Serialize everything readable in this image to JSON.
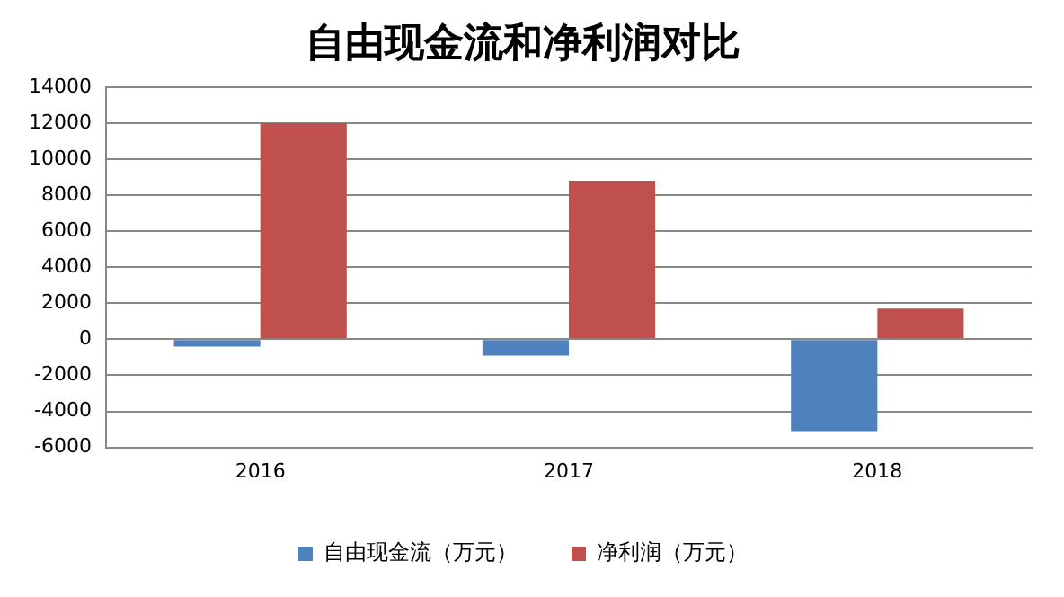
{
  "chart_data": {
    "type": "bar",
    "title": "自由现金流和净利润对比",
    "categories": [
      "2016",
      "2017",
      "2018"
    ],
    "series": [
      {
        "name": "自由现金流（万元）",
        "color": "#4f81bd",
        "values": [
          -400,
          -900,
          -5100
        ]
      },
      {
        "name": "净利润（万元）",
        "color": "#c0504d",
        "values": [
          12000,
          8800,
          1700
        ]
      }
    ],
    "ylim": [
      -6000,
      14000
    ],
    "yticks": [
      -6000,
      -4000,
      -2000,
      0,
      2000,
      4000,
      6000,
      8000,
      10000,
      12000,
      14000
    ],
    "grid": "y",
    "legend": "bottom"
  }
}
